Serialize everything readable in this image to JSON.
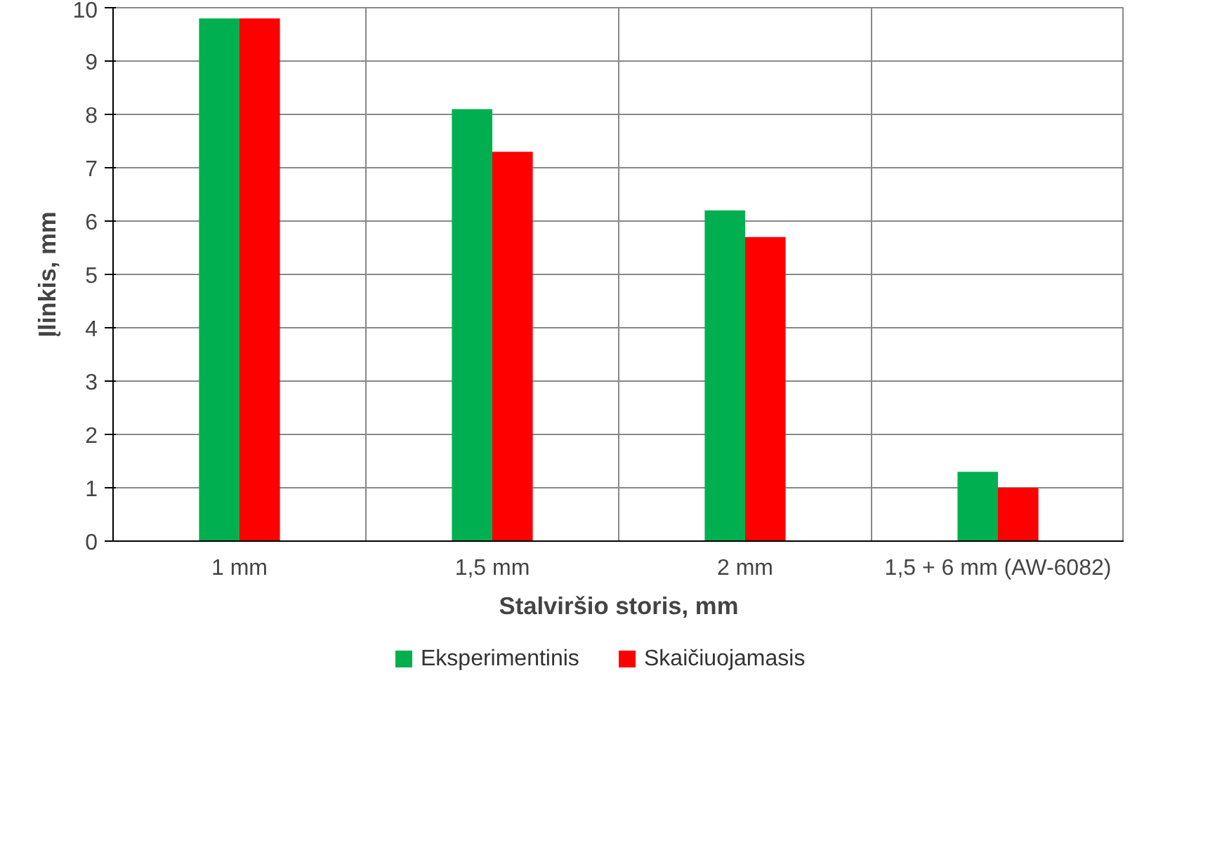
{
  "chart_data": {
    "type": "bar",
    "xlabel": "Stalviršio storis, mm",
    "ylabel": "Įlinkis, mm",
    "categories": [
      "1 mm",
      "1,5 mm",
      "2 mm",
      "1,5 + 6 mm (AW-6082)"
    ],
    "series": [
      {
        "name": "Eksperimentinis",
        "color": "#00b050",
        "values": [
          9.8,
          8.1,
          6.2,
          1.3
        ]
      },
      {
        "name": "Skaičiuojamasis",
        "color": "#ff0000",
        "values": [
          9.8,
          7.3,
          5.7,
          1.0
        ]
      }
    ],
    "ylim": [
      0,
      10
    ],
    "yticks": [
      0,
      1,
      2,
      3,
      4,
      5,
      6,
      7,
      8,
      9,
      10
    ],
    "grid": true,
    "legend": "bottom"
  }
}
